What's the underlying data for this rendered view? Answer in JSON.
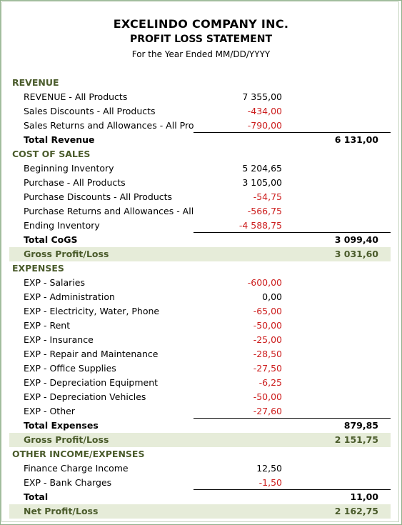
{
  "header": {
    "company": "EXCELINDO COMPANY INC.",
    "statement": "PROFIT LOSS STATEMENT",
    "period": "For the Year Ended MM/DD/YYYY"
  },
  "colors": {
    "section_text": "#4a5b2b",
    "negative": "#cc1d1d",
    "shade": "#e6ecd9"
  },
  "rows": [
    {
      "label": "REVENUE",
      "type": "section"
    },
    {
      "label": "REVENUE - All Products",
      "amount": "7 355,00"
    },
    {
      "label": "Sales Discounts - All Products",
      "amount": "-434,00",
      "neg": true
    },
    {
      "label": "Sales Returns and Allowances - All Products",
      "amount": "-790,00",
      "neg": true,
      "underline": "full"
    },
    {
      "label": "Total Revenue",
      "type": "total",
      "total": "6 131,00"
    },
    {
      "label": "COST OF SALES",
      "type": "section"
    },
    {
      "label": "Beginning Inventory",
      "amount": "5 204,65"
    },
    {
      "label": "Purchase - All Products",
      "amount": "3 105,00"
    },
    {
      "label": "Purchase Discounts - All Products",
      "amount": "-54,75",
      "neg": true
    },
    {
      "label": "Purchase Returns and Allowances - All Products",
      "amount": "-566,75",
      "neg": true
    },
    {
      "label": "Ending Inventory",
      "amount": "-4 588,75",
      "neg": true,
      "underline": "full"
    },
    {
      "label": "Total CoGS",
      "type": "total",
      "total": "3 099,40"
    },
    {
      "label": "Gross Profit/Loss",
      "type": "shaded",
      "total": "3 031,60"
    },
    {
      "label": "EXPENSES",
      "type": "section"
    },
    {
      "label": "EXP - Salaries",
      "amount": "-600,00",
      "neg": true
    },
    {
      "label": "EXP - Administration",
      "amount": "0,00"
    },
    {
      "label": "EXP - Electricity, Water, Phone",
      "amount": "-65,00",
      "neg": true
    },
    {
      "label": "EXP - Rent",
      "amount": "-50,00",
      "neg": true
    },
    {
      "label": "EXP - Insurance",
      "amount": "-25,00",
      "neg": true
    },
    {
      "label": "EXP - Repair and Maintenance",
      "amount": "-28,50",
      "neg": true
    },
    {
      "label": "EXP - Office Supplies",
      "amount": "-27,50",
      "neg": true
    },
    {
      "label": "EXP - Depreciation Equipment",
      "amount": "-6,25",
      "neg": true
    },
    {
      "label": "EXP - Depreciation Vehicles",
      "amount": "-50,00",
      "neg": true
    },
    {
      "label": "EXP - Other",
      "amount": "-27,60",
      "neg": true,
      "underline": "full"
    },
    {
      "label": "Total Expenses",
      "type": "total",
      "total": "879,85"
    },
    {
      "label": "Gross Profit/Loss",
      "type": "shaded",
      "total": "2 151,75"
    },
    {
      "label": "OTHER INCOME/EXPENSES",
      "type": "section"
    },
    {
      "label": "Finance Charge Income",
      "amount": "12,50"
    },
    {
      "label": "EXP - Bank Charges",
      "amount": "-1,50",
      "neg": true,
      "underline": "full"
    },
    {
      "label": "Total",
      "type": "total",
      "total": "11,00"
    },
    {
      "label": "Net Profit/Loss",
      "type": "shaded",
      "total": "2 162,75"
    }
  ]
}
